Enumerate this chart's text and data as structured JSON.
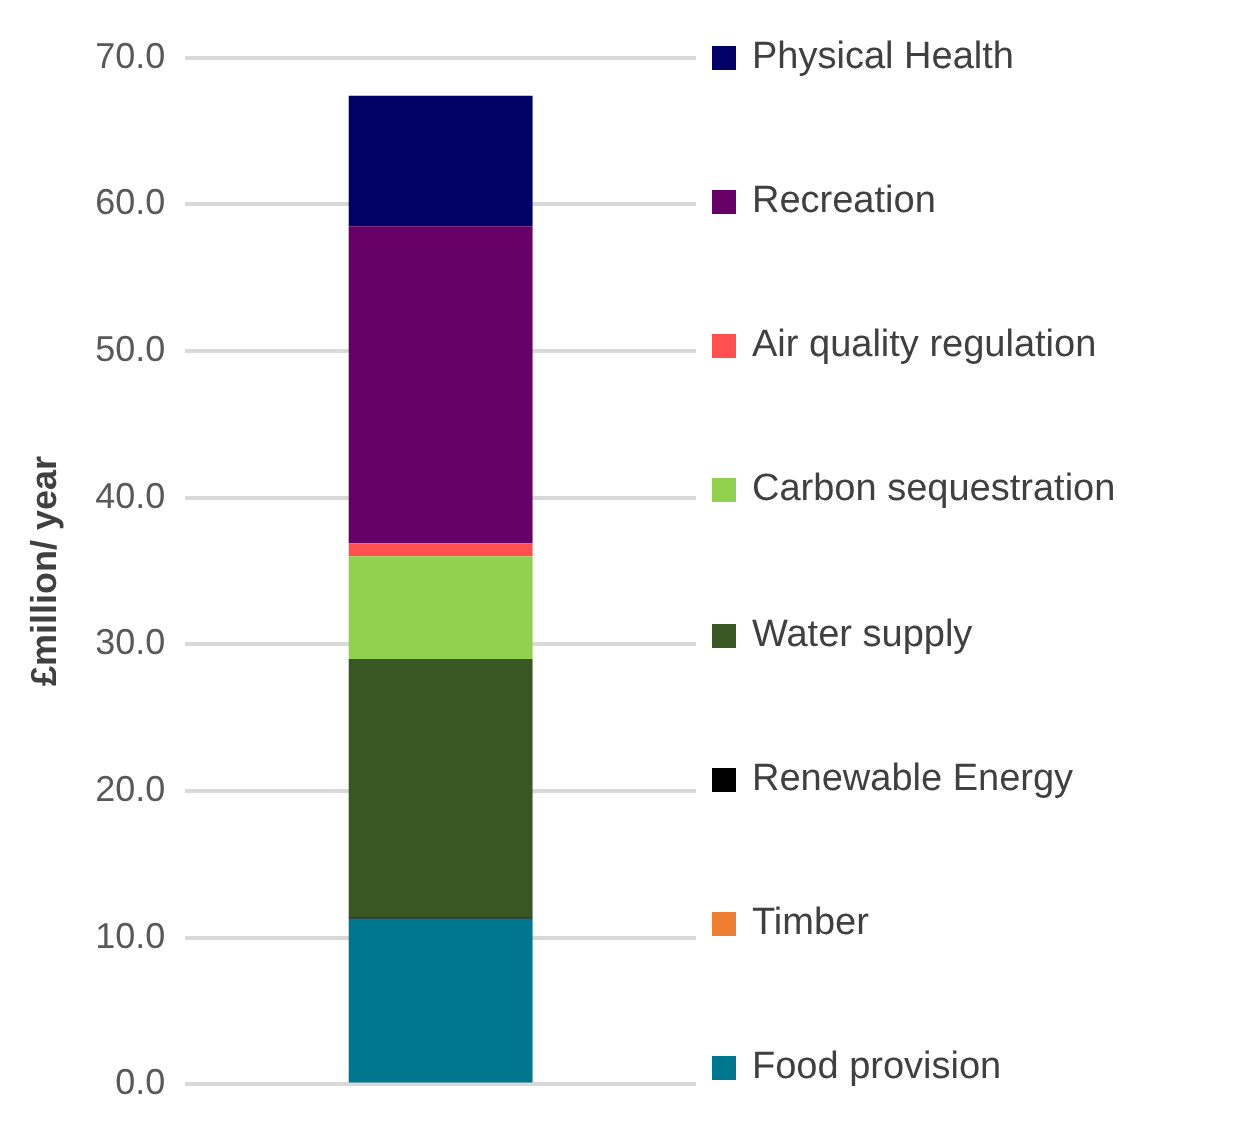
{
  "chart_data": {
    "type": "bar",
    "stacked": true,
    "ylabel": "£million/ year",
    "categories": [
      null
    ],
    "series": [
      {
        "name": "Food provision",
        "color": "#00778f",
        "values": [
          11.3
        ]
      },
      {
        "name": "Timber",
        "color": "#ed7d31",
        "values": [
          0.0
        ]
      },
      {
        "name": "Renewable Energy",
        "color": "#000000",
        "values": [
          0.1
        ]
      },
      {
        "name": "Water supply",
        "color": "#385723",
        "values": [
          17.6
        ]
      },
      {
        "name": "Carbon sequestration",
        "color": "#92d050",
        "values": [
          7.0
        ]
      },
      {
        "name": "Air quality regulation",
        "color": "#ff5050",
        "values": [
          0.9
        ]
      },
      {
        "name": "Recreation",
        "color": "#660066",
        "values": [
          21.6
        ]
      },
      {
        "name": "Physical Health",
        "color": "#000066",
        "values": [
          8.9
        ]
      }
    ],
    "ylim": [
      0,
      70
    ],
    "yticks": [
      {
        "value": 0,
        "label": "0.0"
      },
      {
        "value": 10,
        "label": "10.0"
      },
      {
        "value": 20,
        "label": "20.0"
      },
      {
        "value": 30,
        "label": "30.0"
      },
      {
        "value": 40,
        "label": "40.0"
      },
      {
        "value": 50,
        "label": "50.0"
      },
      {
        "value": 60,
        "label": "60.0"
      },
      {
        "value": 70,
        "label": "70.0"
      }
    ],
    "grid": "y",
    "legend": "right"
  }
}
